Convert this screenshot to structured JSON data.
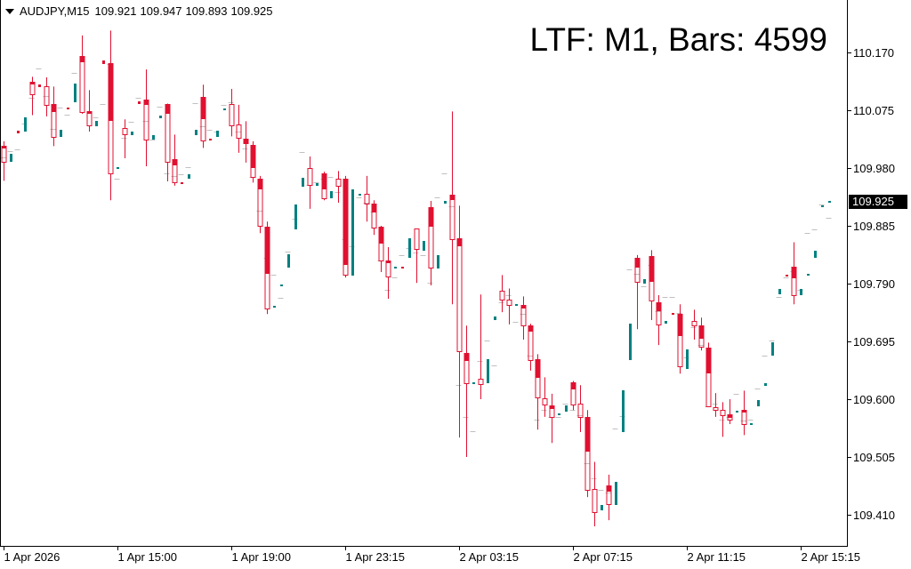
{
  "header": {
    "symbol": "AUDJPY,M15",
    "open": "109.921",
    "high": "109.947",
    "low": "109.893",
    "close": "109.925"
  },
  "overlay_label": "LTF: M1, Bars: 4599",
  "colors": {
    "bear": "#e01030",
    "bull_ltf": "#008080",
    "tick": "#c0c0c0",
    "axis": "#000000"
  },
  "chart_data": {
    "type": "candlestick",
    "title": "AUDJPY,M15",
    "ylim": [
      109.37,
      110.258
    ],
    "y_ticks": [
      "110.170",
      "110.075",
      "109.980",
      "109.885",
      "109.790",
      "109.695",
      "109.600",
      "109.505",
      "109.410"
    ],
    "current_price": "109.925",
    "x_labels": [
      {
        "slot": 0,
        "label": "1 Apr 2026"
      },
      {
        "slot": 16,
        "label": "1 Apr 15:00"
      },
      {
        "slot": 32,
        "label": "1 Apr 19:00"
      },
      {
        "slot": 48,
        "label": "1 Apr 23:15"
      },
      {
        "slot": 64,
        "label": "2 Apr 03:15"
      },
      {
        "slot": 80,
        "label": "2 Apr 07:15"
      },
      {
        "slot": 96,
        "label": "2 Apr 11:15"
      },
      {
        "slot": 112,
        "label": "2 Apr 15:15"
      }
    ],
    "candles_fields": [
      "slot",
      "high",
      "low",
      "body_top",
      "body_bottom",
      "fill_bottom"
    ],
    "candles": [
      [
        0,
        110.024,
        109.959,
        110.016,
        109.99,
        110.013
      ],
      [
        4,
        110.13,
        110.067,
        110.122,
        110.101,
        110.119
      ],
      [
        6,
        110.129,
        110.065,
        110.114,
        110.084,
        null
      ],
      [
        7,
        110.114,
        110.016,
        110.085,
        110.031,
        110.073
      ],
      [
        11,
        110.198,
        110.069,
        110.164,
        110.072,
        110.155
      ],
      [
        12,
        110.108,
        110.04,
        110.073,
        110.05,
        110.07
      ],
      [
        15,
        110.206,
        109.927,
        110.152,
        109.971,
        110.059
      ],
      [
        17,
        110.06,
        109.996,
        110.046,
        110.035,
        null
      ],
      [
        20,
        110.142,
        109.983,
        110.092,
        110.027,
        110.085
      ],
      [
        23,
        110.086,
        109.958,
        110.085,
        109.99,
        110.07
      ],
      [
        24,
        110.035,
        109.951,
        109.994,
        109.956,
        109.986
      ],
      [
        28,
        110.117,
        110.013,
        110.097,
        110.025,
        110.062
      ],
      [
        32,
        110.11,
        110.032,
        110.085,
        110.05,
        null
      ],
      [
        33,
        110.084,
        110.005,
        110.051,
        110.029,
        null
      ],
      [
        34,
        110.057,
        109.989,
        110.028,
        110.021,
        110.021
      ],
      [
        35,
        110.024,
        109.956,
        110.018,
        109.965,
        109.981
      ],
      [
        36,
        109.967,
        109.873,
        109.962,
        109.885,
        109.946
      ],
      [
        37,
        109.892,
        109.74,
        109.883,
        109.749,
        109.807
      ],
      [
        43,
        109.999,
        109.913,
        109.98,
        109.952,
        null
      ],
      [
        45,
        109.974,
        109.927,
        109.971,
        109.93,
        109.946
      ],
      [
        47,
        109.975,
        109.923,
        109.962,
        109.951,
        null
      ],
      [
        48,
        109.967,
        109.8,
        109.962,
        109.804,
        109.822
      ],
      [
        51,
        109.967,
        109.892,
        109.937,
        109.921,
        null
      ],
      [
        52,
        109.927,
        109.87,
        109.921,
        109.882,
        109.908
      ],
      [
        53,
        109.885,
        109.809,
        109.883,
        109.828,
        109.857
      ],
      [
        54,
        109.85,
        109.765,
        109.828,
        109.801,
        109.825
      ],
      [
        58,
        109.88,
        109.791,
        109.88,
        109.847,
        null
      ],
      [
        60,
        109.926,
        109.787,
        109.915,
        109.816,
        109.885
      ],
      [
        63,
        110.073,
        109.756,
        109.936,
        109.863,
        109.929
      ],
      [
        64,
        109.918,
        109.537,
        109.864,
        109.679,
        109.853
      ],
      [
        65,
        109.721,
        109.505,
        109.676,
        109.626,
        109.664
      ],
      [
        67,
        109.772,
        109.6,
        109.633,
        109.625,
        null
      ],
      [
        70,
        109.804,
        109.743,
        109.778,
        109.763,
        null
      ],
      [
        71,
        109.782,
        109.723,
        109.763,
        109.755,
        null
      ],
      [
        73,
        109.769,
        109.698,
        109.755,
        109.721,
        109.75
      ],
      [
        74,
        109.724,
        109.647,
        109.721,
        109.664,
        109.712
      ],
      [
        75,
        109.674,
        109.55,
        109.666,
        109.603,
        109.636
      ],
      [
        76,
        109.636,
        109.571,
        109.601,
        109.591,
        null
      ],
      [
        77,
        109.609,
        109.528,
        109.59,
        109.571,
        109.585
      ],
      [
        80,
        109.63,
        109.582,
        109.628,
        109.591,
        109.617
      ],
      [
        81,
        109.623,
        109.546,
        109.592,
        109.571,
        null
      ],
      [
        82,
        109.582,
        109.439,
        109.571,
        109.451,
        109.515
      ],
      [
        83,
        109.497,
        109.391,
        109.452,
        109.414,
        null
      ],
      [
        85,
        109.476,
        109.401,
        109.458,
        109.427,
        109.449
      ],
      [
        89,
        109.837,
        109.715,
        109.832,
        109.793,
        109.818
      ],
      [
        91,
        109.845,
        109.73,
        109.835,
        109.762,
        109.794
      ],
      [
        92,
        109.771,
        109.689,
        109.76,
        109.723,
        109.746
      ],
      [
        95,
        109.756,
        109.642,
        109.74,
        109.654,
        109.705
      ],
      [
        97,
        109.747,
        109.698,
        109.728,
        109.721,
        null
      ],
      [
        98,
        109.734,
        109.68,
        109.721,
        109.686,
        109.701
      ],
      [
        99,
        109.693,
        109.588,
        109.685,
        109.588,
        109.644
      ],
      [
        100,
        109.61,
        109.571,
        109.587,
        109.582,
        null
      ],
      [
        101,
        109.595,
        109.538,
        109.582,
        109.573,
        null
      ],
      [
        102,
        109.6,
        109.559,
        109.575,
        109.566,
        109.571
      ],
      [
        104,
        109.614,
        109.541,
        109.582,
        109.559,
        109.579
      ],
      [
        111,
        109.858,
        109.756,
        109.818,
        109.771,
        109.8
      ]
    ],
    "ltf_up_fields": [
      "slot",
      "top",
      "bottom"
    ],
    "ltf_up": [
      [
        1,
        110.003,
        109.99
      ],
      [
        3,
        110.063,
        110.04
      ],
      [
        8,
        110.043,
        110.031
      ],
      [
        10,
        110.119,
        110.088
      ],
      [
        13,
        110.057,
        110.048
      ],
      [
        16,
        109.981,
        109.978
      ],
      [
        18,
        110.04,
        110.034
      ],
      [
        21,
        110.034,
        110.027
      ],
      [
        22,
        110.066,
        110.062
      ],
      [
        26,
        109.97,
        109.962
      ],
      [
        27,
        110.043,
        110.034
      ],
      [
        30,
        110.041,
        110.031
      ],
      [
        31,
        110.078,
        110.075
      ],
      [
        38,
        109.753,
        109.75
      ],
      [
        39,
        109.788,
        109.785
      ],
      [
        40,
        109.838,
        109.816
      ],
      [
        41,
        109.92,
        109.879
      ],
      [
        42,
        109.964,
        109.949
      ],
      [
        44,
        109.955,
        109.951
      ],
      [
        46,
        109.942,
        109.93
      ],
      [
        49,
        109.945,
        109.803
      ],
      [
        50,
        109.937,
        109.935
      ],
      [
        55,
        109.818,
        109.816
      ],
      [
        57,
        109.864,
        109.832
      ],
      [
        59,
        109.86,
        109.844
      ],
      [
        61,
        109.837,
        109.815
      ],
      [
        62,
        109.926,
        109.921
      ],
      [
        66,
        109.628,
        109.625
      ],
      [
        68,
        109.666,
        109.626
      ],
      [
        69,
        109.736,
        109.73
      ],
      [
        72,
        109.756,
        109.753
      ],
      [
        78,
        109.576,
        109.575
      ],
      [
        79,
        109.59,
        109.579
      ],
      [
        84,
        109.426,
        109.417
      ],
      [
        86,
        109.464,
        109.426
      ],
      [
        87,
        109.614,
        109.546
      ],
      [
        88,
        109.724,
        109.664
      ],
      [
        90,
        109.797,
        109.79
      ],
      [
        93,
        109.728,
        109.724
      ],
      [
        96,
        109.682,
        109.649
      ],
      [
        103,
        109.581,
        109.579
      ],
      [
        105,
        109.56,
        109.559
      ],
      [
        106,
        109.598,
        109.588
      ],
      [
        107,
        109.626,
        109.622
      ],
      [
        108,
        109.693,
        109.672
      ],
      [
        109,
        109.781,
        109.772
      ],
      [
        112,
        109.781,
        109.771
      ],
      [
        113,
        109.806,
        109.803
      ],
      [
        114,
        109.844,
        109.832
      ],
      [
        115,
        109.918,
        109.917
      ],
      [
        116,
        109.926,
        109.923
      ]
    ],
    "ltf_down": [
      [
        2,
        110.041,
        110.037
      ],
      [
        5,
        110.117,
        110.113
      ],
      [
        9,
        110.079,
        110.076
      ],
      [
        14,
        110.157,
        110.151
      ],
      [
        19,
        110.089,
        110.085
      ],
      [
        25,
        109.956,
        109.955
      ],
      [
        29,
        110.028,
        110.025
      ],
      [
        56,
        109.818,
        109.815
      ],
      [
        94,
        109.742,
        109.74
      ],
      [
        110,
        109.804,
        109.803
      ]
    ],
    "ticks_fields": [
      "slot",
      "price"
    ],
    "ticks": [
      [
        0,
        109.997
      ],
      [
        1,
        110.008
      ],
      [
        2,
        110.011
      ],
      [
        3,
        110.053
      ],
      [
        4,
        110.095
      ],
      [
        5,
        110.144
      ],
      [
        6,
        110.098
      ],
      [
        7,
        110.044
      ],
      [
        8,
        110.079
      ],
      [
        9,
        110.067
      ],
      [
        10,
        110.136
      ],
      [
        13,
        110.063
      ],
      [
        14,
        110.085
      ],
      [
        15,
        110.151
      ],
      [
        16,
        109.962
      ],
      [
        17,
        110.029
      ],
      [
        18,
        110.056
      ],
      [
        19,
        110.095
      ],
      [
        20,
        110.057
      ],
      [
        21,
        110.027
      ],
      [
        22,
        110.081
      ],
      [
        23,
        109.971
      ],
      [
        24,
        109.967
      ],
      [
        25,
        109.97
      ],
      [
        26,
        109.981
      ],
      [
        27,
        110.086
      ],
      [
        28,
        110.048
      ],
      [
        29,
        110.043
      ],
      [
        30,
        110.04
      ],
      [
        31,
        110.084
      ],
      [
        32,
        110.088
      ],
      [
        33,
        110.04
      ],
      [
        34,
        110.012
      ],
      [
        35,
        109.965
      ],
      [
        36,
        109.91
      ],
      [
        37,
        109.832
      ],
      [
        38,
        109.804
      ],
      [
        39,
        109.766
      ],
      [
        40,
        109.842
      ],
      [
        41,
        109.896
      ],
      [
        42,
        110.006
      ],
      [
        43,
        109.952
      ],
      [
        44,
        109.956
      ],
      [
        45,
        109.962
      ],
      [
        46,
        109.965
      ],
      [
        47,
        109.94
      ],
      [
        48,
        109.863
      ],
      [
        49,
        109.851
      ],
      [
        50,
        109.932
      ],
      [
        51,
        109.923
      ],
      [
        52,
        109.908
      ],
      [
        53,
        109.828
      ],
      [
        54,
        109.78
      ],
      [
        55,
        109.8
      ],
      [
        56,
        109.837
      ],
      [
        57,
        109.848
      ],
      [
        58,
        109.841
      ],
      [
        59,
        109.837
      ],
      [
        60,
        109.791
      ],
      [
        61,
        109.932
      ],
      [
        62,
        109.971
      ],
      [
        63,
        109.917
      ],
      [
        64,
        109.623
      ],
      [
        65,
        109.571
      ],
      [
        66,
        109.547
      ],
      [
        67,
        109.663
      ],
      [
        68,
        109.696
      ],
      [
        69,
        109.655
      ],
      [
        70,
        109.76
      ],
      [
        71,
        109.771
      ],
      [
        72,
        109.727
      ],
      [
        73,
        109.74
      ],
      [
        74,
        109.672
      ],
      [
        75,
        109.566
      ],
      [
        76,
        109.582
      ],
      [
        77,
        109.571
      ],
      [
        78,
        109.571
      ],
      [
        79,
        109.592
      ],
      [
        80,
        109.582
      ],
      [
        81,
        109.573
      ],
      [
        82,
        109.495
      ],
      [
        83,
        109.47
      ],
      [
        84,
        109.451
      ],
      [
        85,
        109.446
      ],
      [
        86,
        109.552
      ],
      [
        87,
        109.572
      ],
      [
        88,
        109.813
      ],
      [
        89,
        109.806
      ],
      [
        90,
        109.785
      ],
      [
        91,
        109.82
      ],
      [
        92,
        109.745
      ],
      [
        93,
        109.768
      ],
      [
        94,
        109.768
      ],
      [
        95,
        109.742
      ],
      [
        96,
        109.668
      ],
      [
        97,
        109.718
      ],
      [
        98,
        109.689
      ],
      [
        99,
        109.588
      ],
      [
        100,
        109.592
      ],
      [
        101,
        109.566
      ],
      [
        102,
        109.571
      ],
      [
        103,
        109.609
      ],
      [
        104,
        109.565
      ],
      [
        105,
        109.566
      ],
      [
        106,
        109.617
      ],
      [
        107,
        109.672
      ],
      [
        108,
        109.696
      ],
      [
        109,
        109.768
      ],
      [
        110,
        109.8
      ],
      [
        111,
        109.81
      ],
      [
        112,
        109.78
      ],
      [
        113,
        109.873
      ],
      [
        114,
        109.879
      ],
      [
        115,
        109.92
      ],
      [
        116,
        109.898
      ]
    ]
  }
}
